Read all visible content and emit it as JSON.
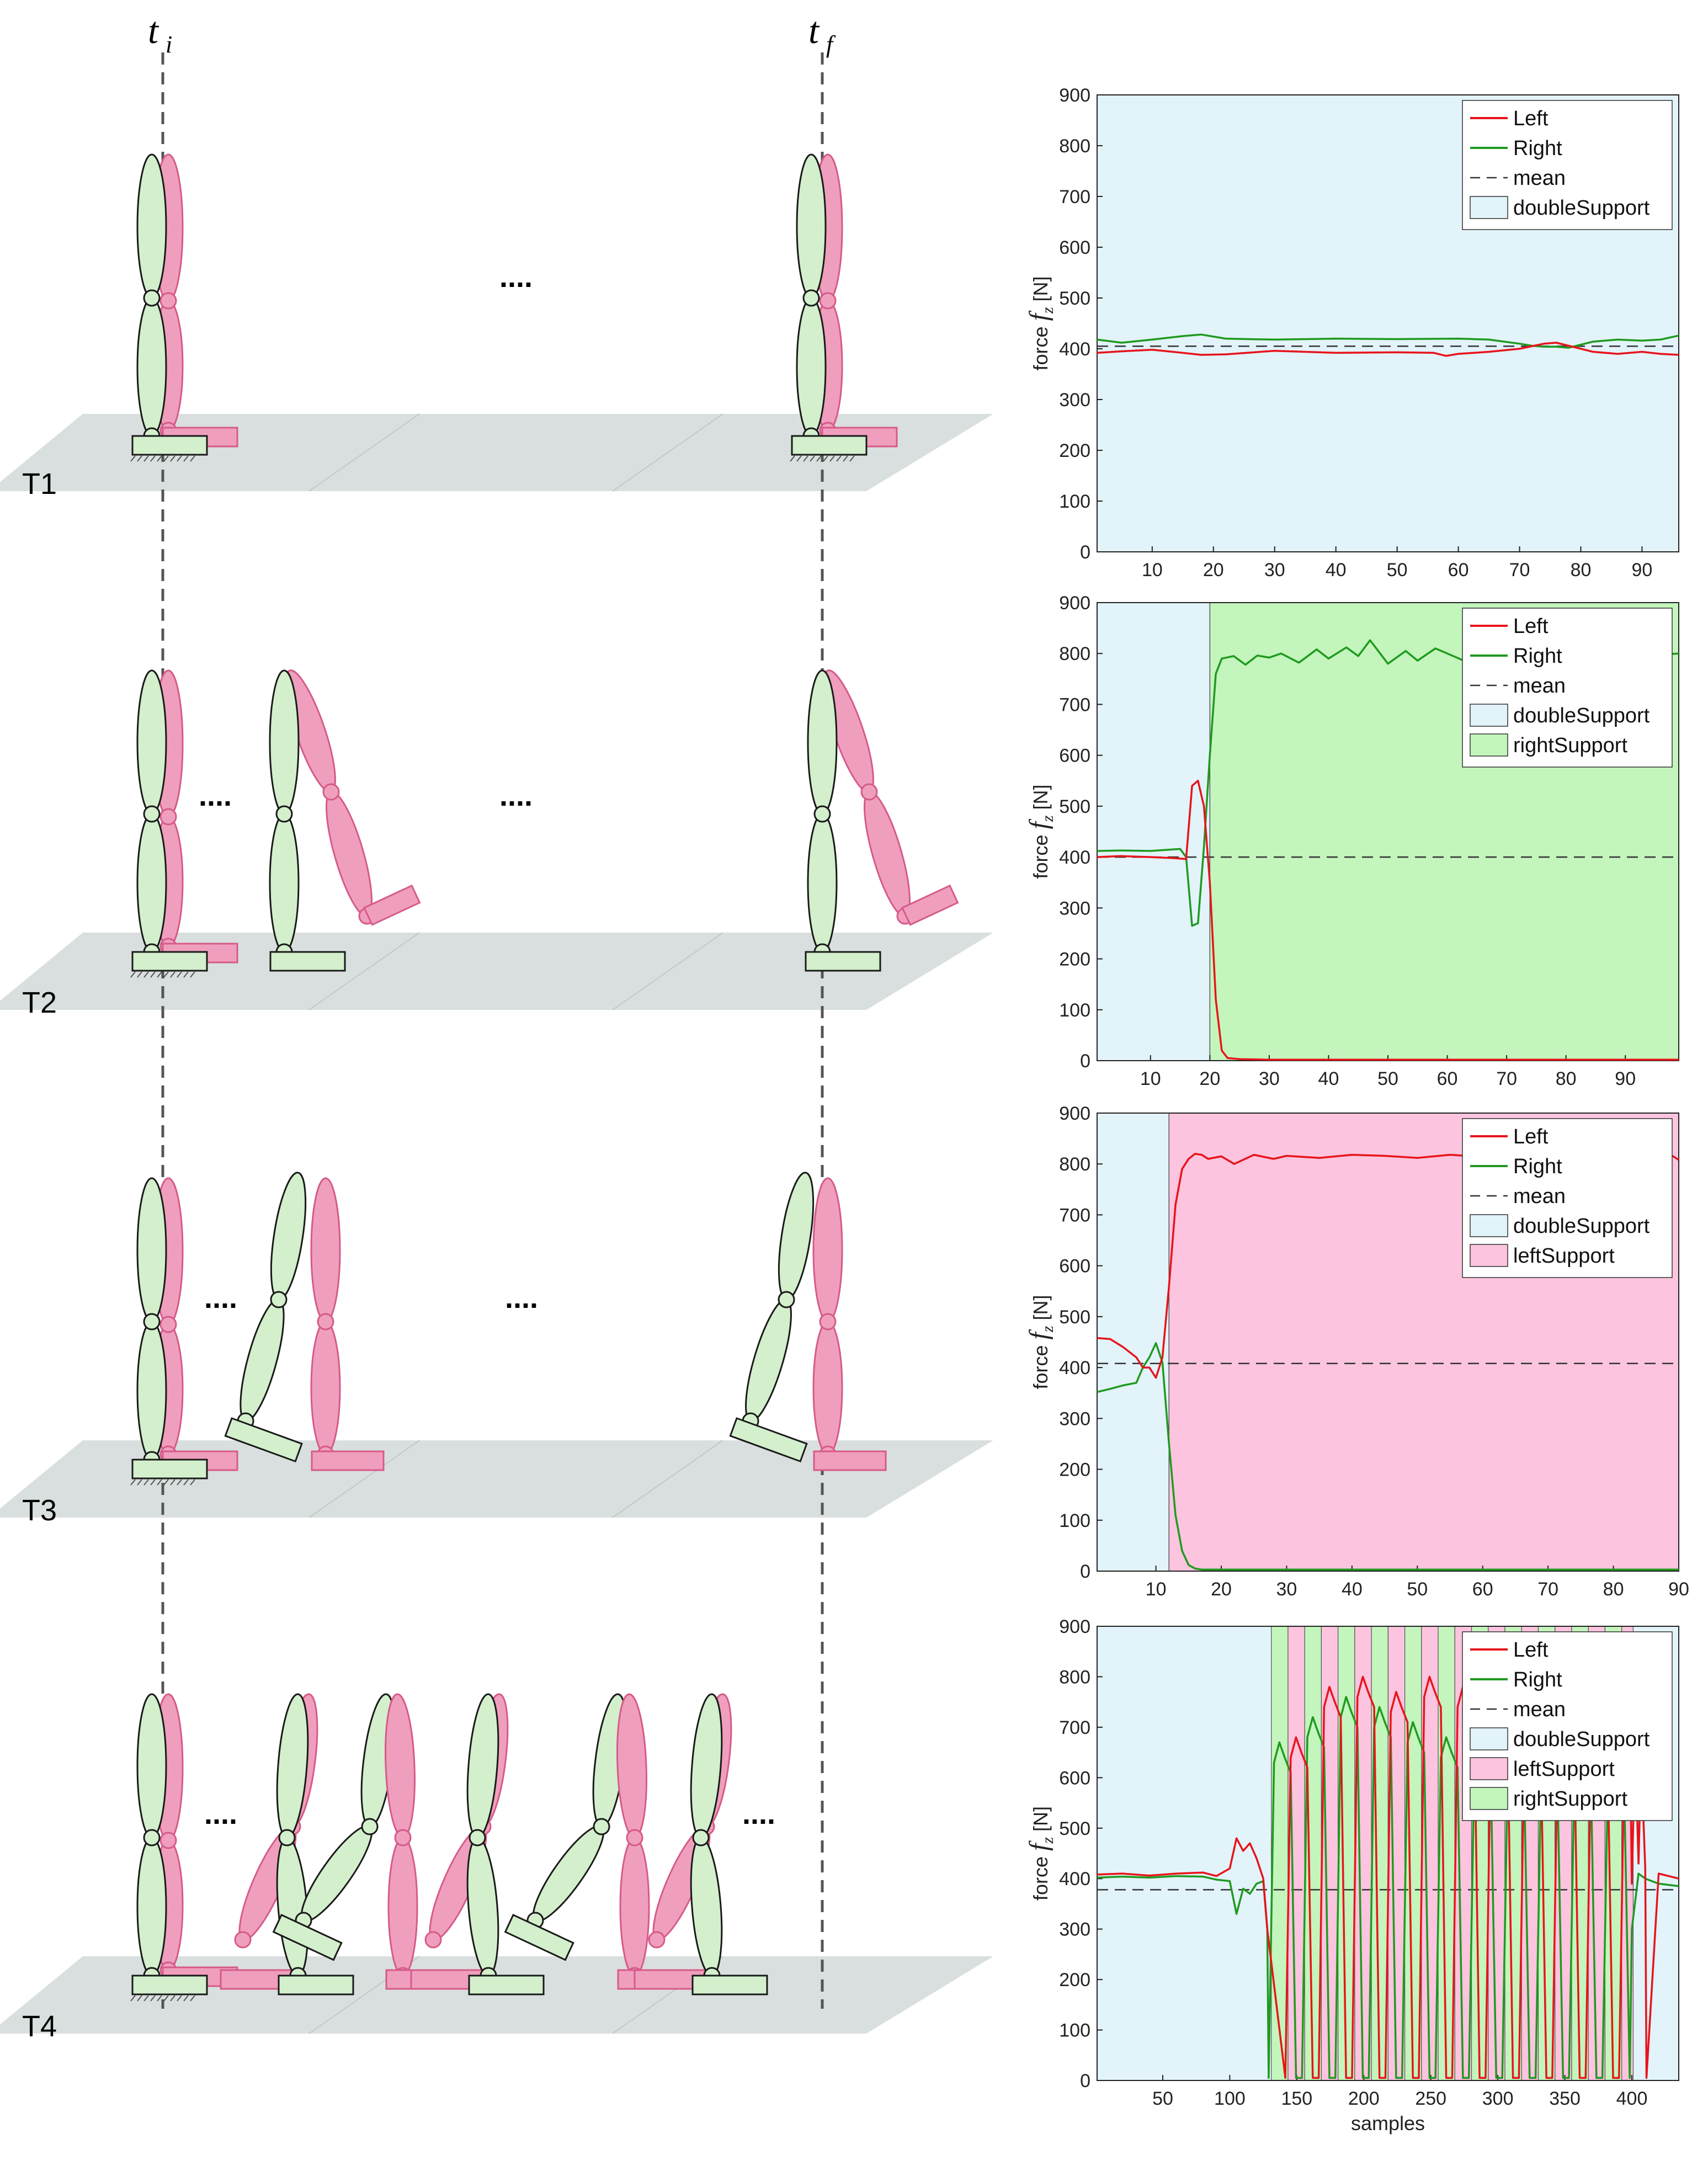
{
  "figure": {
    "time_labels": {
      "initial": "t",
      "initial_sub": "i",
      "final": "t",
      "final_sub": "f"
    },
    "ellipsis": "....",
    "rows": [
      {
        "label": "T1"
      },
      {
        "label": "T2"
      },
      {
        "label": "T3"
      },
      {
        "label": "T4"
      }
    ]
  },
  "colors": {
    "left": "#e8141b",
    "right": "#1f9a1f",
    "mean": "#333333",
    "doubleSupport": "#e2f3fa",
    "leftSupport": "#fcc4de",
    "rightSupport": "#c3f5bc",
    "leg_green": "#d3efcc",
    "leg_pink": "#ef9fbd",
    "floor": "#d5dcda"
  },
  "chart_data": [
    {
      "type": "line",
      "ylabel_prefix": "force ",
      "ylabel_var": "f",
      "ylabel_sub": "z",
      "ylabel_unit": " [N]",
      "xlabel": "",
      "xlim": [
        1,
        96
      ],
      "ylim": [
        0,
        900
      ],
      "xticks": [
        10,
        20,
        30,
        40,
        50,
        60,
        70,
        80,
        90
      ],
      "yticks": [
        0,
        100,
        200,
        300,
        400,
        500,
        600,
        700,
        800,
        900
      ],
      "legend": [
        "Left",
        "Right",
        "mean",
        "doubleSupport"
      ],
      "legend_position": "top-right",
      "mean": 405,
      "phases": [
        {
          "type": "doubleSupport",
          "from": 1,
          "to": 96
        }
      ],
      "series": [
        {
          "name": "Left",
          "x": [
            1,
            5,
            10,
            15,
            18,
            22,
            30,
            40,
            50,
            56,
            58,
            60,
            65,
            70,
            74,
            76,
            78,
            82,
            86,
            90,
            93,
            96
          ],
          "values": [
            392,
            395,
            398,
            392,
            388,
            389,
            396,
            392,
            393,
            392,
            386,
            390,
            394,
            400,
            410,
            412,
            406,
            394,
            390,
            394,
            390,
            388
          ]
        },
        {
          "name": "Right",
          "x": [
            1,
            5,
            10,
            15,
            18,
            22,
            30,
            40,
            50,
            60,
            65,
            70,
            72,
            74,
            76,
            78,
            82,
            86,
            90,
            93,
            96
          ],
          "values": [
            418,
            412,
            418,
            425,
            428,
            420,
            418,
            420,
            419,
            420,
            418,
            410,
            406,
            404,
            404,
            402,
            414,
            418,
            416,
            418,
            426
          ]
        }
      ]
    },
    {
      "type": "line",
      "ylabel_prefix": "force ",
      "ylabel_var": "f",
      "ylabel_sub": "z",
      "ylabel_unit": " [N]",
      "xlabel": "",
      "xlim": [
        1,
        99
      ],
      "ylim": [
        0,
        900
      ],
      "xticks": [
        10,
        20,
        30,
        40,
        50,
        60,
        70,
        80,
        90
      ],
      "yticks": [
        0,
        100,
        200,
        300,
        400,
        500,
        600,
        700,
        800,
        900
      ],
      "legend": [
        "Left",
        "Right",
        "mean",
        "doubleSupport",
        "rightSupport"
      ],
      "legend_position": "top-right",
      "mean": 400,
      "phases": [
        {
          "type": "doubleSupport",
          "from": 1,
          "to": 20
        },
        {
          "type": "rightSupport",
          "from": 20,
          "to": 99
        }
      ],
      "series": [
        {
          "name": "Left",
          "x": [
            1,
            5,
            10,
            14,
            16,
            17,
            18,
            19,
            20,
            21,
            22,
            23,
            25,
            30,
            40,
            50,
            60,
            70,
            80,
            90,
            99
          ],
          "values": [
            400,
            402,
            400,
            398,
            396,
            540,
            550,
            500,
            350,
            120,
            20,
            5,
            3,
            2,
            2,
            2,
            2,
            2,
            2,
            2,
            2
          ]
        },
        {
          "name": "Right",
          "x": [
            1,
            5,
            10,
            15,
            16,
            17,
            18,
            19,
            20,
            21,
            22,
            24,
            26,
            28,
            30,
            32,
            35,
            38,
            40,
            43,
            45,
            47,
            50,
            53,
            55,
            58,
            60,
            63,
            65,
            68,
            70,
            73,
            75,
            78,
            80,
            83,
            85,
            88,
            90,
            93,
            96,
            99
          ],
          "values": [
            412,
            413,
            412,
            416,
            400,
            265,
            270,
            420,
            600,
            760,
            790,
            795,
            778,
            796,
            792,
            800,
            782,
            808,
            790,
            812,
            795,
            826,
            780,
            805,
            786,
            810,
            800,
            785,
            812,
            790,
            808,
            795,
            786,
            810,
            792,
            808,
            790,
            806,
            794,
            786,
            798,
            800
          ]
        }
      ]
    },
    {
      "type": "line",
      "ylabel_prefix": "force ",
      "ylabel_var": "f",
      "ylabel_sub": "z",
      "ylabel_unit": " [N]",
      "xlabel": "",
      "xlim": [
        1,
        90
      ],
      "ylim": [
        0,
        900
      ],
      "xticks": [
        10,
        20,
        30,
        40,
        50,
        60,
        70,
        80,
        90
      ],
      "yticks": [
        0,
        100,
        200,
        300,
        400,
        500,
        600,
        700,
        800,
        900
      ],
      "legend": [
        "Left",
        "Right",
        "mean",
        "doubleSupport",
        "leftSupport"
      ],
      "legend_position": "top-right",
      "mean": 408,
      "phases": [
        {
          "type": "doubleSupport",
          "from": 1,
          "to": 12
        },
        {
          "type": "leftSupport",
          "from": 12,
          "to": 90
        }
      ],
      "series": [
        {
          "name": "Left",
          "x": [
            1,
            3,
            5,
            7,
            8,
            9,
            10,
            11,
            12,
            13,
            14,
            15,
            16,
            17,
            18,
            20,
            22,
            25,
            28,
            30,
            35,
            40,
            45,
            50,
            55,
            60,
            65,
            70,
            75,
            80,
            85,
            88,
            90
          ],
          "values": [
            458,
            456,
            440,
            420,
            400,
            400,
            380,
            420,
            560,
            720,
            790,
            810,
            820,
            818,
            810,
            815,
            800,
            818,
            810,
            816,
            812,
            818,
            816,
            812,
            818,
            814,
            816,
            812,
            818,
            816,
            818,
            824,
            808
          ]
        },
        {
          "name": "Right",
          "x": [
            1,
            3,
            5,
            7,
            8,
            9,
            10,
            11,
            12,
            13,
            14,
            15,
            16,
            17,
            18,
            20,
            25,
            30,
            40,
            50,
            60,
            70,
            80,
            90
          ],
          "values": [
            352,
            358,
            365,
            370,
            400,
            420,
            448,
            410,
            250,
            110,
            40,
            12,
            5,
            3,
            3,
            3,
            3,
            3,
            3,
            3,
            3,
            3,
            3,
            3
          ]
        }
      ]
    },
    {
      "type": "line",
      "ylabel_prefix": "force ",
      "ylabel_var": "f",
      "ylabel_sub": "z",
      "ylabel_unit": " [N]",
      "xlabel": "samples",
      "xlim": [
        1,
        435
      ],
      "ylim": [
        0,
        900
      ],
      "xticks": [
        50,
        100,
        150,
        200,
        250,
        300,
        350,
        400
      ],
      "yticks": [
        0,
        100,
        200,
        300,
        400,
        500,
        600,
        700,
        800,
        900
      ],
      "legend": [
        "Left",
        "Right",
        "mean",
        "doubleSupport",
        "leftSupport",
        "rightSupport"
      ],
      "legend_position": "top-right",
      "mean": 378,
      "phases_start": 131,
      "phases_step": 12.45,
      "phases_count": 22,
      "phases_end": 432,
      "phases_note": "alternating rightSupport / leftSupport bands between 131 and 400, doubleSupport otherwise",
      "series": [
        {
          "name": "Left",
          "x": [
            1,
            20,
            40,
            60,
            80,
            90,
            100,
            105,
            110,
            115,
            120,
            125,
            128
          ],
          "values": [
            408,
            410,
            406,
            410,
            412,
            405,
            420,
            480,
            455,
            470,
            440,
            400,
            300
          ]
        },
        {
          "name": "Right",
          "x": [
            1,
            20,
            40,
            60,
            80,
            90,
            100,
            105,
            110,
            115,
            120,
            125,
            128
          ],
          "values": [
            402,
            404,
            402,
            405,
            404,
            398,
            395,
            330,
            380,
            370,
            390,
            395,
            300
          ]
        }
      ],
      "stance_peaks": {
        "left": [
          680,
          780,
          800,
          770,
          800,
          780,
          740,
          700,
          710,
          690,
          700,
          700,
          680,
          680
        ],
        "right": [
          670,
          720,
          760,
          740,
          710,
          680,
          650,
          640,
          630,
          640,
          620,
          630,
          610
        ]
      },
      "tail": {
        "x": [
          400,
          405,
          410,
          420,
          435
        ],
        "left": [
          390,
          430,
          420,
          410,
          400
        ],
        "right": [
          300,
          410,
          400,
          390,
          385
        ]
      }
    }
  ]
}
